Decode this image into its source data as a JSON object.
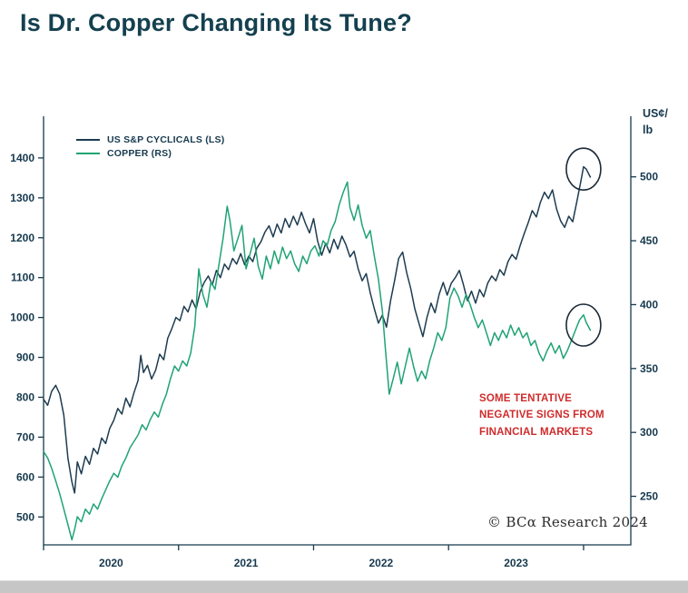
{
  "header": {
    "title": "Is Dr. Copper Changing Its Tune?"
  },
  "footer": {
    "credit": "© BCα Research 2024"
  },
  "chart_data": {
    "type": "line",
    "title": "Is Dr. Copper Changing Its Tune?",
    "legend_position": "top-left-inside",
    "grid": false,
    "note": {
      "color": "#cf2b2b",
      "lines": [
        "SOME TENTATIVE",
        "NEGATIVE SIGNS FROM",
        "FINANCIAL MARKETS"
      ]
    },
    "left_axis": {
      "ticks": [
        500,
        600,
        700,
        800,
        900,
        1000,
        1100,
        1200,
        1300,
        1400
      ],
      "min": 430,
      "max": 1500
    },
    "right_axis": {
      "unit": "US¢/lb",
      "unit_lines": [
        "US¢/",
        "lb"
      ],
      "ticks": [
        250,
        300,
        350,
        400,
        450,
        500
      ],
      "min": 212,
      "max": 546
    },
    "x_axis": {
      "min": 2020.0,
      "max": 2024.35,
      "tick_years": [
        2020,
        2021,
        2022,
        2023,
        2024
      ],
      "year_labels": [
        "2020",
        "2021",
        "2022",
        "2023"
      ],
      "label_positions": [
        2020.5,
        2021.5,
        2022.5,
        2023.5
      ]
    },
    "annotations": {
      "circles": [
        {
          "axis": "left",
          "x": 2024.0,
          "value": 1372
        },
        {
          "axis": "right",
          "x": 2024.0,
          "value": 384
        }
      ]
    },
    "series": [
      {
        "name": "US S&P CYCLICALS (LS)",
        "axis": "left",
        "color": "#1d3c50",
        "points": [
          [
            2020.0,
            795
          ],
          [
            2020.03,
            780
          ],
          [
            2020.06,
            815
          ],
          [
            2020.09,
            830
          ],
          [
            2020.12,
            808
          ],
          [
            2020.15,
            755
          ],
          [
            2020.18,
            648
          ],
          [
            2020.21,
            588
          ],
          [
            2020.23,
            560
          ],
          [
            2020.25,
            638
          ],
          [
            2020.28,
            608
          ],
          [
            2020.31,
            652
          ],
          [
            2020.34,
            632
          ],
          [
            2020.37,
            672
          ],
          [
            2020.4,
            658
          ],
          [
            2020.43,
            698
          ],
          [
            2020.46,
            684
          ],
          [
            2020.49,
            722
          ],
          [
            2020.52,
            742
          ],
          [
            2020.55,
            772
          ],
          [
            2020.58,
            758
          ],
          [
            2020.61,
            798
          ],
          [
            2020.64,
            776
          ],
          [
            2020.67,
            812
          ],
          [
            2020.7,
            842
          ],
          [
            2020.72,
            905
          ],
          [
            2020.74,
            862
          ],
          [
            2020.77,
            880
          ],
          [
            2020.8,
            846
          ],
          [
            2020.83,
            868
          ],
          [
            2020.86,
            908
          ],
          [
            2020.89,
            894
          ],
          [
            2020.92,
            948
          ],
          [
            2020.95,
            972
          ],
          [
            2020.98,
            1000
          ],
          [
            2021.01,
            992
          ],
          [
            2021.04,
            1028
          ],
          [
            2021.07,
            1014
          ],
          [
            2021.1,
            1044
          ],
          [
            2021.13,
            1022
          ],
          [
            2021.16,
            1064
          ],
          [
            2021.19,
            1088
          ],
          [
            2021.22,
            1104
          ],
          [
            2021.25,
            1082
          ],
          [
            2021.28,
            1118
          ],
          [
            2021.31,
            1100
          ],
          [
            2021.34,
            1134
          ],
          [
            2021.37,
            1120
          ],
          [
            2021.4,
            1148
          ],
          [
            2021.43,
            1134
          ],
          [
            2021.46,
            1160
          ],
          [
            2021.49,
            1132
          ],
          [
            2021.52,
            1154
          ],
          [
            2021.55,
            1140
          ],
          [
            2021.58,
            1174
          ],
          [
            2021.61,
            1190
          ],
          [
            2021.64,
            1214
          ],
          [
            2021.67,
            1230
          ],
          [
            2021.7,
            1202
          ],
          [
            2021.73,
            1234
          ],
          [
            2021.76,
            1212
          ],
          [
            2021.79,
            1248
          ],
          [
            2021.82,
            1226
          ],
          [
            2021.85,
            1254
          ],
          [
            2021.88,
            1232
          ],
          [
            2021.91,
            1264
          ],
          [
            2021.94,
            1236
          ],
          [
            2021.97,
            1212
          ],
          [
            2022.0,
            1248
          ],
          [
            2022.03,
            1192
          ],
          [
            2022.06,
            1156
          ],
          [
            2022.09,
            1186
          ],
          [
            2022.12,
            1162
          ],
          [
            2022.15,
            1196
          ],
          [
            2022.18,
            1172
          ],
          [
            2022.21,
            1204
          ],
          [
            2022.24,
            1182
          ],
          [
            2022.27,
            1152
          ],
          [
            2022.3,
            1166
          ],
          [
            2022.33,
            1122
          ],
          [
            2022.36,
            1092
          ],
          [
            2022.39,
            1110
          ],
          [
            2022.42,
            1062
          ],
          [
            2022.45,
            1022
          ],
          [
            2022.48,
            986
          ],
          [
            2022.51,
            1006
          ],
          [
            2022.54,
            976
          ],
          [
            2022.57,
            1042
          ],
          [
            2022.6,
            1092
          ],
          [
            2022.63,
            1148
          ],
          [
            2022.66,
            1164
          ],
          [
            2022.69,
            1112
          ],
          [
            2022.72,
            1072
          ],
          [
            2022.75,
            1022
          ],
          [
            2022.78,
            986
          ],
          [
            2022.81,
            952
          ],
          [
            2022.84,
            1000
          ],
          [
            2022.87,
            1036
          ],
          [
            2022.9,
            1012
          ],
          [
            2022.93,
            1058
          ],
          [
            2022.96,
            1088
          ],
          [
            2022.99,
            1056
          ],
          [
            2023.02,
            1086
          ],
          [
            2023.05,
            1100
          ],
          [
            2023.08,
            1118
          ],
          [
            2023.11,
            1082
          ],
          [
            2023.14,
            1042
          ],
          [
            2023.17,
            1066
          ],
          [
            2023.2,
            1036
          ],
          [
            2023.23,
            1070
          ],
          [
            2023.26,
            1052
          ],
          [
            2023.29,
            1086
          ],
          [
            2023.32,
            1104
          ],
          [
            2023.35,
            1092
          ],
          [
            2023.38,
            1120
          ],
          [
            2023.41,
            1106
          ],
          [
            2023.44,
            1140
          ],
          [
            2023.47,
            1158
          ],
          [
            2023.5,
            1146
          ],
          [
            2023.53,
            1180
          ],
          [
            2023.56,
            1210
          ],
          [
            2023.59,
            1238
          ],
          [
            2023.62,
            1268
          ],
          [
            2023.65,
            1252
          ],
          [
            2023.68,
            1288
          ],
          [
            2023.71,
            1314
          ],
          [
            2023.74,
            1298
          ],
          [
            2023.77,
            1320
          ],
          [
            2023.8,
            1272
          ],
          [
            2023.83,
            1242
          ],
          [
            2023.86,
            1226
          ],
          [
            2023.89,
            1254
          ],
          [
            2023.92,
            1240
          ],
          [
            2023.95,
            1290
          ],
          [
            2023.98,
            1342
          ],
          [
            2024.0,
            1378
          ],
          [
            2024.02,
            1372
          ],
          [
            2024.05,
            1352
          ]
        ]
      },
      {
        "name": "COPPER (RS)",
        "axis": "right",
        "color": "#1fa374",
        "points": [
          [
            2020.0,
            285
          ],
          [
            2020.03,
            280
          ],
          [
            2020.06,
            272
          ],
          [
            2020.09,
            262
          ],
          [
            2020.12,
            252
          ],
          [
            2020.15,
            240
          ],
          [
            2020.18,
            228
          ],
          [
            2020.21,
            216
          ],
          [
            2020.23,
            224
          ],
          [
            2020.25,
            234
          ],
          [
            2020.28,
            230
          ],
          [
            2020.31,
            240
          ],
          [
            2020.34,
            236
          ],
          [
            2020.37,
            244
          ],
          [
            2020.4,
            240
          ],
          [
            2020.43,
            248
          ],
          [
            2020.46,
            255
          ],
          [
            2020.49,
            262
          ],
          [
            2020.52,
            268
          ],
          [
            2020.55,
            265
          ],
          [
            2020.58,
            274
          ],
          [
            2020.61,
            280
          ],
          [
            2020.64,
            288
          ],
          [
            2020.67,
            293
          ],
          [
            2020.7,
            298
          ],
          [
            2020.73,
            306
          ],
          [
            2020.76,
            302
          ],
          [
            2020.79,
            310
          ],
          [
            2020.82,
            316
          ],
          [
            2020.85,
            312
          ],
          [
            2020.88,
            322
          ],
          [
            2020.91,
            330
          ],
          [
            2020.94,
            342
          ],
          [
            2020.97,
            352
          ],
          [
            2021.0,
            348
          ],
          [
            2021.03,
            356
          ],
          [
            2021.06,
            352
          ],
          [
            2021.09,
            362
          ],
          [
            2021.12,
            383
          ],
          [
            2021.15,
            428
          ],
          [
            2021.18,
            408
          ],
          [
            2021.21,
            398
          ],
          [
            2021.24,
            418
          ],
          [
            2021.27,
            412
          ],
          [
            2021.3,
            432
          ],
          [
            2021.33,
            452
          ],
          [
            2021.36,
            477
          ],
          [
            2021.38,
            466
          ],
          [
            2021.41,
            442
          ],
          [
            2021.44,
            452
          ],
          [
            2021.47,
            462
          ],
          [
            2021.5,
            428
          ],
          [
            2021.53,
            440
          ],
          [
            2021.56,
            452
          ],
          [
            2021.59,
            430
          ],
          [
            2021.62,
            420
          ],
          [
            2021.65,
            438
          ],
          [
            2021.68,
            428
          ],
          [
            2021.71,
            442
          ],
          [
            2021.74,
            432
          ],
          [
            2021.77,
            445
          ],
          [
            2021.8,
            436
          ],
          [
            2021.83,
            442
          ],
          [
            2021.86,
            432
          ],
          [
            2021.89,
            426
          ],
          [
            2021.92,
            438
          ],
          [
            2021.95,
            432
          ],
          [
            2021.98,
            442
          ],
          [
            2022.01,
            446
          ],
          [
            2022.04,
            438
          ],
          [
            2022.07,
            450
          ],
          [
            2022.1,
            446
          ],
          [
            2022.13,
            458
          ],
          [
            2022.16,
            465
          ],
          [
            2022.19,
            478
          ],
          [
            2022.22,
            488
          ],
          [
            2022.25,
            496
          ],
          [
            2022.27,
            476
          ],
          [
            2022.3,
            466
          ],
          [
            2022.33,
            478
          ],
          [
            2022.36,
            462
          ],
          [
            2022.39,
            452
          ],
          [
            2022.42,
            458
          ],
          [
            2022.45,
            438
          ],
          [
            2022.48,
            420
          ],
          [
            2022.51,
            395
          ],
          [
            2022.53,
            368
          ],
          [
            2022.56,
            330
          ],
          [
            2022.59,
            342
          ],
          [
            2022.62,
            355
          ],
          [
            2022.65,
            338
          ],
          [
            2022.68,
            352
          ],
          [
            2022.71,
            366
          ],
          [
            2022.74,
            352
          ],
          [
            2022.77,
            340
          ],
          [
            2022.8,
            348
          ],
          [
            2022.83,
            342
          ],
          [
            2022.86,
            356
          ],
          [
            2022.89,
            366
          ],
          [
            2022.92,
            378
          ],
          [
            2022.95,
            372
          ],
          [
            2022.98,
            382
          ],
          [
            2023.01,
            405
          ],
          [
            2023.04,
            413
          ],
          [
            2023.07,
            407
          ],
          [
            2023.1,
            398
          ],
          [
            2023.13,
            408
          ],
          [
            2023.16,
            400
          ],
          [
            2023.19,
            390
          ],
          [
            2023.22,
            382
          ],
          [
            2023.25,
            388
          ],
          [
            2023.28,
            378
          ],
          [
            2023.31,
            368
          ],
          [
            2023.34,
            378
          ],
          [
            2023.37,
            372
          ],
          [
            2023.4,
            380
          ],
          [
            2023.43,
            374
          ],
          [
            2023.46,
            384
          ],
          [
            2023.49,
            376
          ],
          [
            2023.52,
            382
          ],
          [
            2023.55,
            374
          ],
          [
            2023.58,
            378
          ],
          [
            2023.61,
            368
          ],
          [
            2023.64,
            372
          ],
          [
            2023.67,
            362
          ],
          [
            2023.7,
            356
          ],
          [
            2023.73,
            364
          ],
          [
            2023.76,
            370
          ],
          [
            2023.79,
            362
          ],
          [
            2023.82,
            368
          ],
          [
            2023.85,
            358
          ],
          [
            2023.88,
            364
          ],
          [
            2023.91,
            372
          ],
          [
            2023.94,
            380
          ],
          [
            2023.97,
            388
          ],
          [
            2024.0,
            392
          ],
          [
            2024.02,
            386
          ],
          [
            2024.05,
            380
          ]
        ]
      }
    ]
  }
}
